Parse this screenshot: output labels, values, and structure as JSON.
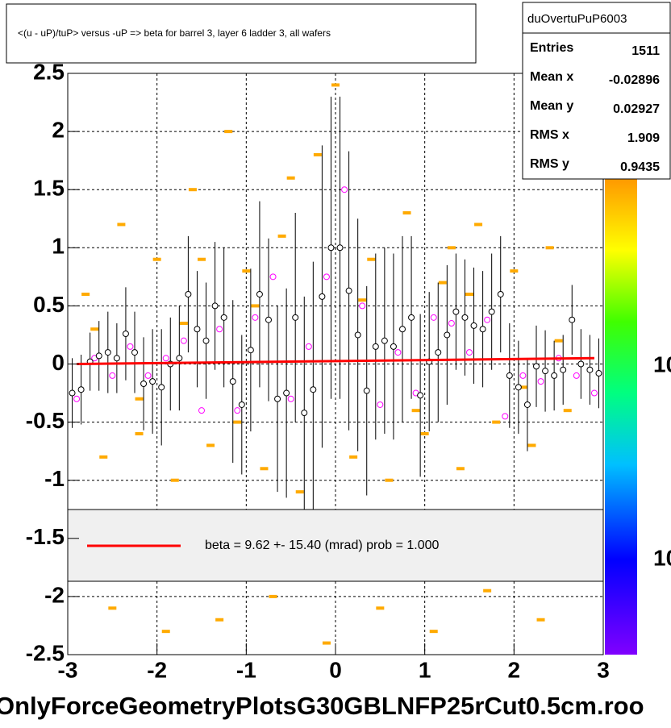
{
  "chart_data": {
    "type": "profile",
    "title": "<(u - uP)/tuP> versus  -uP => beta for barrel 3, layer 6 ladder 3, all wafers",
    "footer": "OnlyForceGeometryPlotsG30GBLNFP25rCut0.5cm.roo",
    "palette_labels": [
      "10",
      "10"
    ],
    "stats": {
      "name": "duOvertuPuP6003",
      "rows": [
        [
          "Entries",
          1511
        ],
        [
          "Mean x",
          -0.02896
        ],
        [
          "Mean y",
          0.02927
        ],
        [
          "RMS x",
          1.909
        ],
        [
          "RMS y",
          0.9435
        ]
      ]
    },
    "legend": "beta =    9.62 +- 15.40 (mrad) prob = 1.000",
    "xlim": [
      -3,
      3
    ],
    "ylim": [
      -2.5,
      2.5
    ],
    "xticks": [
      -3,
      -2,
      -1,
      0,
      1,
      2,
      3
    ],
    "yticks": [
      -2.5,
      -2,
      -1.5,
      -1,
      -0.5,
      0,
      0.5,
      1,
      1.5,
      2,
      2.5
    ],
    "grid": true,
    "profile": {
      "color": "#000000",
      "x": [
        -2.95,
        -2.85,
        -2.75,
        -2.65,
        -2.55,
        -2.45,
        -2.35,
        -2.25,
        -2.15,
        -2.05,
        -1.95,
        -1.85,
        -1.75,
        -1.65,
        -1.55,
        -1.45,
        -1.35,
        -1.25,
        -1.15,
        -1.05,
        -0.95,
        -0.85,
        -0.75,
        -0.65,
        -0.55,
        -0.45,
        -0.35,
        -0.25,
        -0.15,
        -0.05,
        0.05,
        0.15,
        0.25,
        0.35,
        0.45,
        0.55,
        0.65,
        0.75,
        0.85,
        0.95,
        1.05,
        1.15,
        1.25,
        1.35,
        1.45,
        1.55,
        1.65,
        1.75,
        1.85,
        1.95,
        2.05,
        2.15,
        2.25,
        2.35,
        2.45,
        2.55,
        2.65,
        2.75,
        2.85,
        2.95
      ],
      "y": [
        -0.25,
        -0.22,
        0.02,
        0.07,
        0.1,
        0.05,
        0.26,
        0.1,
        -0.17,
        -0.15,
        -0.2,
        0,
        0.05,
        0.6,
        0.3,
        0.2,
        0.5,
        0.4,
        -0.15,
        -0.35,
        0.12,
        0.6,
        0.38,
        -0.3,
        -0.25,
        0.4,
        -0.42,
        -0.22,
        0.58,
        1,
        1,
        0.63,
        0.25,
        -0.23,
        0.15,
        0.2,
        0.15,
        0.3,
        0.4,
        -0.27,
        0.02,
        0.1,
        0.25,
        0.45,
        0.4,
        0.33,
        0.3,
        0.45,
        0.6,
        -0.1,
        -0.2,
        -0.35,
        -0.02,
        -0.06,
        -0.1,
        -0.05,
        0.38,
        0,
        -0.05,
        -0.08
      ],
      "err": [
        0.3,
        0.3,
        0.25,
        0.3,
        0.35,
        0.3,
        0.4,
        0.35,
        0.4,
        0.45,
        0.5,
        0.4,
        0.45,
        0.5,
        0.5,
        0.5,
        0.55,
        0.6,
        0.7,
        0.6,
        0.7,
        0.8,
        0.7,
        0.8,
        0.9,
        0.9,
        1,
        1.1,
        1.3,
        1.3,
        1.3,
        1.2,
        1,
        0.9,
        0.8,
        0.8,
        0.8,
        0.8,
        0.7,
        0.7,
        0.6,
        0.6,
        0.6,
        0.5,
        0.5,
        0.5,
        0.5,
        0.5,
        0.5,
        0.45,
        0.4,
        0.4,
        0.35,
        0.35,
        0.3,
        0.3,
        0.3,
        0.3,
        0.3,
        0.3
      ]
    },
    "overlay": {
      "color": "#ff00ff",
      "x": [
        -2.9,
        -2.7,
        -2.5,
        -2.3,
        -2.1,
        -1.9,
        -1.7,
        -1.5,
        -1.3,
        -1.1,
        -0.9,
        -0.7,
        -0.5,
        -0.3,
        -0.1,
        0.1,
        0.3,
        0.5,
        0.7,
        0.9,
        1.1,
        1.3,
        1.5,
        1.7,
        1.9,
        2.1,
        2.3,
        2.5,
        2.7,
        2.9
      ],
      "y": [
        -0.3,
        0.05,
        -0.1,
        0.15,
        -0.1,
        0.05,
        0.2,
        -0.4,
        0.3,
        -0.4,
        0.4,
        0.75,
        -0.3,
        0.15,
        0.75,
        1.5,
        0.5,
        -0.35,
        0.1,
        -0.25,
        0.4,
        0.35,
        0.1,
        0.38,
        -0.45,
        -0.1,
        -0.15,
        0.05,
        -0.1,
        -0.25
      ]
    },
    "cells": {
      "color": "#ffaa00",
      "x": [
        -2.8,
        -2.6,
        -2.4,
        -2.2,
        -2.0,
        -1.8,
        -1.6,
        -1.4,
        -1.2,
        -1.0,
        -0.8,
        -0.6,
        -0.4,
        -0.2,
        0.0,
        0.2,
        0.4,
        0.6,
        0.8,
        1.0,
        1.2,
        1.4,
        1.6,
        1.8,
        2.0,
        2.2,
        2.4,
        2.6,
        -2.5,
        -1.9,
        -1.3,
        -0.7,
        -0.1,
        0.5,
        1.1,
        1.7,
        2.3,
        -2.7,
        -1.7,
        -0.9,
        0.3,
        1.5,
        2.5,
        -2.2,
        -1.1,
        0.9,
        2.1,
        -0.5,
        1.3,
        -1.5
      ],
      "y": [
        0.6,
        -0.8,
        1.2,
        -0.6,
        0.9,
        -1.0,
        1.5,
        -0.7,
        2.0,
        0.8,
        -0.9,
        1.1,
        -1.1,
        1.8,
        2.4,
        -0.8,
        0.9,
        -1.0,
        1.3,
        -0.6,
        0.7,
        -0.9,
        1.2,
        -0.5,
        0.8,
        -0.7,
        1.0,
        -0.4,
        -2.1,
        -2.3,
        -2.2,
        -2.0,
        -2.4,
        -2.1,
        -2.3,
        -1.95,
        -2.2,
        0.3,
        0.35,
        0.5,
        0.55,
        0.6,
        0.2,
        -0.3,
        -0.5,
        -0.4,
        -0.2,
        1.6,
        1.0,
        0.9
      ]
    },
    "fit": {
      "color": "#ff0000",
      "x": [
        -2.9,
        2.9
      ],
      "y": [
        0.0,
        0.05
      ]
    }
  }
}
